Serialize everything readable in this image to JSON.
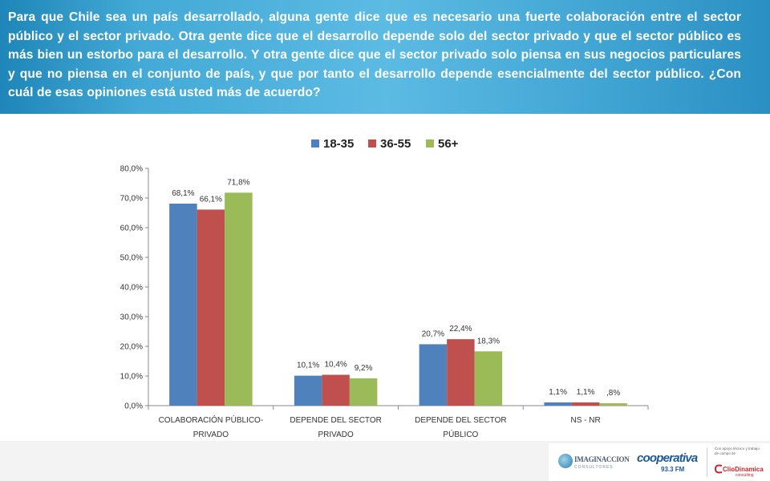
{
  "header": {
    "question": "Para que Chile sea un país desarrollado, alguna gente dice que es necesario una fuerte colaboración entre el sector público y el sector privado. Otra gente dice que el desarrollo depende solo del sector privado y que el sector público es más bien un estorbo para el desarrollo. Y otra gente dice que el sector privado solo piensa en sus negocios particulares y que no piensa en el conjunto de país, y que por tanto el desarrollo depende esencialmente del sector público. ¿Con cuál de esas opiniones está usted más de acuerdo?"
  },
  "chart_data": {
    "type": "bar",
    "categories": [
      [
        "COLABORACIÓN   PÚBLICO-",
        "PRIVADO"
      ],
      [
        "DEPENDE DEL SECTOR",
        "PRIVADO"
      ],
      [
        "DEPENDE DEL SECTOR",
        "PÚBLICO"
      ],
      [
        "NS - NR"
      ]
    ],
    "series": [
      {
        "name": "18-35",
        "color": "#4f81bd",
        "values": [
          68.1,
          10.1,
          20.7,
          1.1
        ],
        "labels": [
          "68,1%",
          "10,1%",
          "20,7%",
          "1,1%"
        ]
      },
      {
        "name": "36-55",
        "color": "#c0504d",
        "values": [
          66.1,
          10.4,
          22.4,
          1.1
        ],
        "labels": [
          "66,1%",
          "10,4%",
          "22,4%",
          "1,1%"
        ]
      },
      {
        "name": "56+",
        "color": "#9bbb59",
        "values": [
          71.8,
          9.2,
          18.3,
          0.8
        ],
        "labels": [
          "71,8%",
          "9,2%",
          "18,3%",
          ",8%"
        ]
      }
    ],
    "yticks": [
      "0,0%",
      "10,0%",
      "20,0%",
      "30,0%",
      "40,0%",
      "50,0%",
      "60,0%",
      "70,0%",
      "80,0%"
    ],
    "ylim": [
      0,
      80
    ],
    "legend_position": "top"
  },
  "logos": {
    "imaginaccion": {
      "name": "IMAGINACCION",
      "sub": "CONSULTORES"
    },
    "cooperativa": {
      "name": "cooperativa",
      "freq": "93.3 FM"
    },
    "clio": {
      "small": "Con apoyo técnico y trabajo de campo de",
      "name": "ClioDinamica",
      "sub": "consulting"
    }
  }
}
